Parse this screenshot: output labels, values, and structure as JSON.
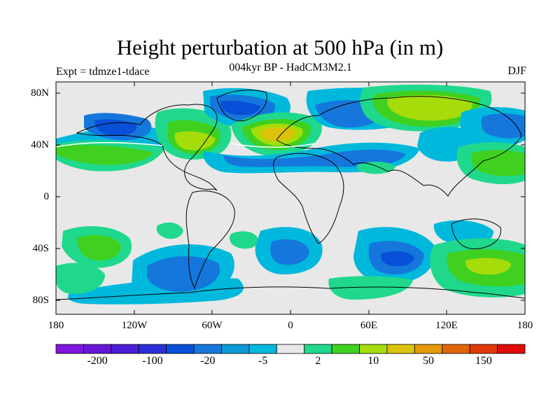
{
  "title": "Height perturbation at 500 hPa (in m)",
  "subtitle": "004kyr BP - HadCM3M2.1",
  "left_label": "Expt = tdmze1-tdace",
  "right_label": "DJF",
  "lat_labels": [
    "80N",
    "40N",
    "0",
    "40S",
    "80S"
  ],
  "lon_labels": [
    "180",
    "120W",
    "60W",
    "0",
    "60E",
    "120E",
    "180"
  ],
  "colorbar": {
    "colors": [
      "#7f16dd",
      "#6716d8",
      "#4a1fd6",
      "#2a2fd8",
      "#0850d8",
      "#1577dc",
      "#0a99d6",
      "#00b8dc",
      "#e8e8e8",
      "#20d88c",
      "#3fd020",
      "#a6dc0a",
      "#dcc20a",
      "#e29a0a",
      "#e0660a",
      "#e03a0a",
      "#e00a0a"
    ],
    "labels": [
      "-200",
      "-100",
      "-20",
      "-5",
      "2",
      "10",
      "50",
      "150"
    ]
  },
  "palette": {
    "background": "#e8e8e8",
    "neg_light": "#00b8dc",
    "neg_mid": "#1577dc",
    "neg_dark": "#0850d8",
    "pos_light": "#20d88c",
    "pos_mid": "#3fd020",
    "pos_high": "#a6dc0a",
    "pos_peak": "#dcc20a",
    "coast": "#000000"
  }
}
